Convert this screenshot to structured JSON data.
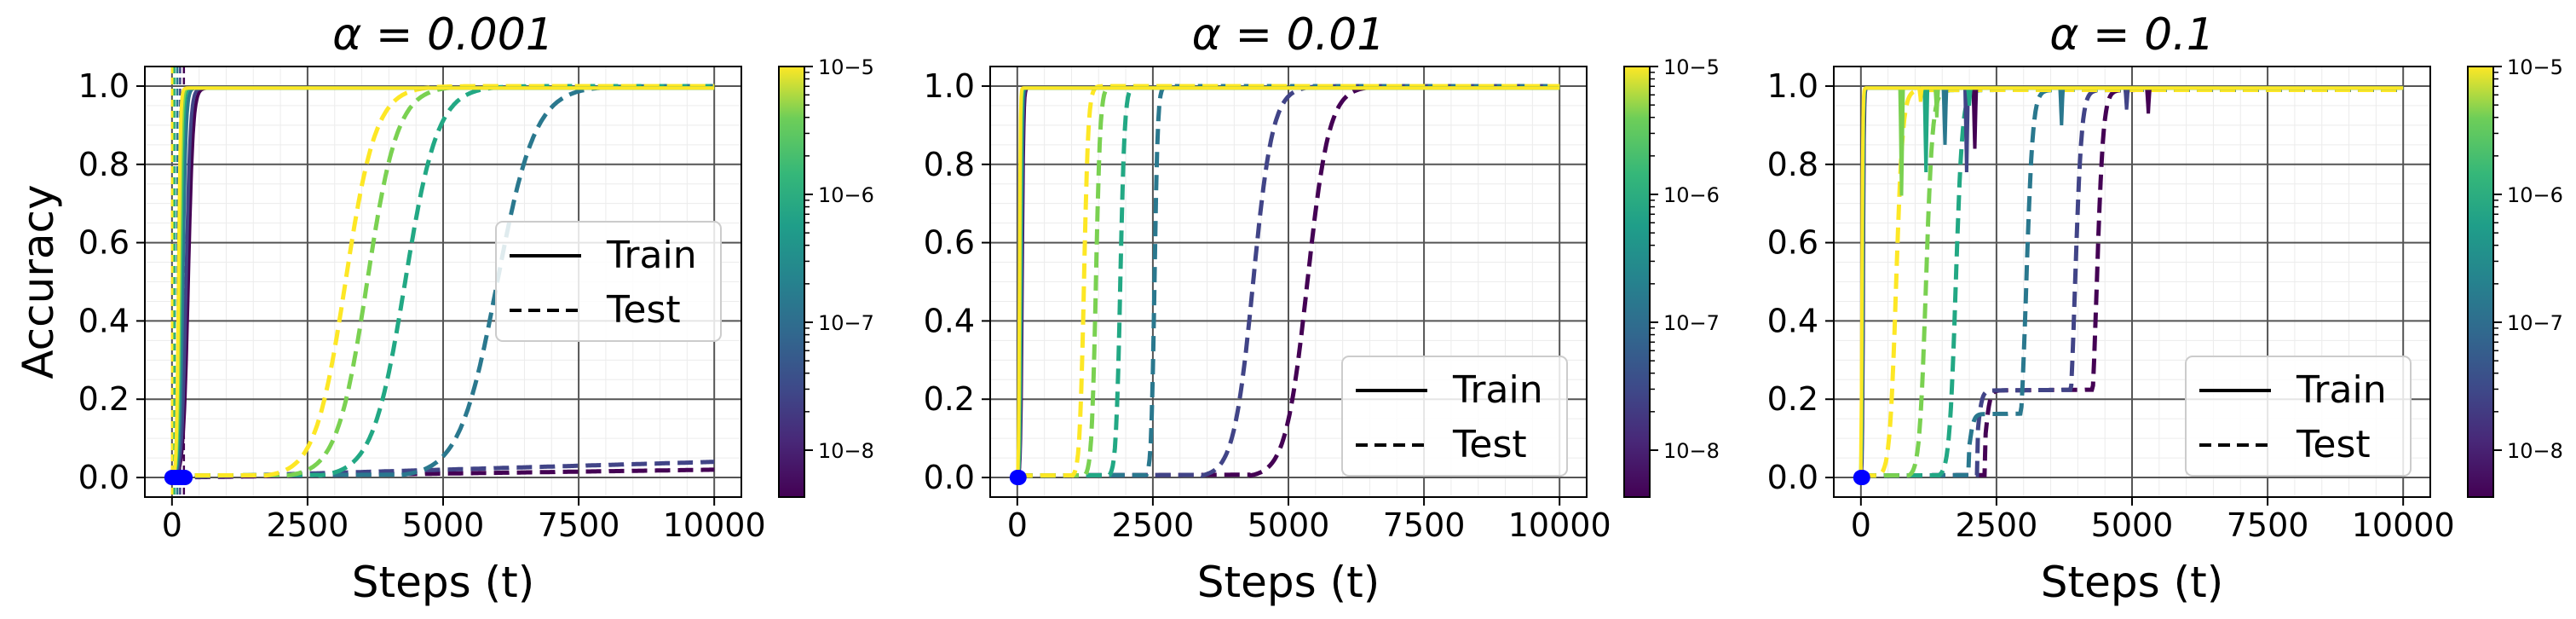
{
  "chart_data": [
    {
      "type": "line",
      "title": "α = 0.001",
      "xlabel": "Steps (t)",
      "ylabel": "Accuracy",
      "xlim": [
        -500,
        10500
      ],
      "ylim": [
        -0.05,
        1.05
      ],
      "xticks": [
        "0",
        "2500",
        "5000",
        "7500",
        "10000"
      ],
      "yticks": [
        "0.0",
        "0.2",
        "0.4",
        "0.6",
        "0.8",
        "1.0"
      ],
      "grid": true,
      "legend": {
        "position": "center-right",
        "entries": [
          "Train",
          "Test"
        ]
      },
      "colorbar": {
        "ticks": [
          "10−5",
          "10−6",
          "10−7",
          "10−8"
        ],
        "scale": "log"
      },
      "markers_at_origin": true,
      "series": [
        {
          "color": "#fde725",
          "train_jump": 120,
          "test_mid": 3200,
          "test_width": 280,
          "test_end": 1.0,
          "vline": 0
        },
        {
          "color": "#7ad151",
          "train_jump": 140,
          "test_mid": 3600,
          "test_width": 280,
          "test_end": 1.0,
          "vline": 20
        },
        {
          "color": "#22a884",
          "train_jump": 160,
          "test_mid": 4300,
          "test_width": 300,
          "test_end": 1.0,
          "vline": 50
        },
        {
          "color": "#2a788e",
          "train_jump": 200,
          "test_mid": 6000,
          "test_width": 350,
          "test_end": 1.0,
          "vline": 100
        },
        {
          "color": "#414487",
          "train_jump": 260,
          "test_linear_end": 0.04,
          "vline": 150
        },
        {
          "color": "#440154",
          "train_jump": 300,
          "test_linear_end": 0.02,
          "vline": 220
        }
      ]
    },
    {
      "type": "line",
      "title": "α = 0.01",
      "xlabel": "Steps (t)",
      "xlim": [
        -500,
        10500
      ],
      "ylim": [
        -0.05,
        1.05
      ],
      "xticks": [
        "0",
        "2500",
        "5000",
        "7500",
        "10000"
      ],
      "yticks": [
        "0.0",
        "0.2",
        "0.4",
        "0.6",
        "0.8",
        "1.0"
      ],
      "grid": true,
      "legend": {
        "position": "lower-right",
        "entries": [
          "Train",
          "Test"
        ]
      },
      "colorbar": {
        "ticks": [
          "10−5",
          "10−6",
          "10−7",
          "10−8"
        ],
        "scale": "log"
      },
      "markers_at_origin": true,
      "series": [
        {
          "color": "#fde725",
          "train_jump": 40,
          "test_mid": 1230,
          "test_width": 40,
          "test_end": 1.0
        },
        {
          "color": "#7ad151",
          "train_jump": 50,
          "test_mid": 1450,
          "test_width": 40,
          "test_end": 1.0
        },
        {
          "color": "#22a884",
          "train_jump": 60,
          "test_mid": 1900,
          "test_width": 40,
          "test_end": 1.0
        },
        {
          "color": "#2a788e",
          "train_jump": 70,
          "test_mid": 2530,
          "test_width": 30,
          "test_end": 1.0
        },
        {
          "color": "#414487",
          "train_jump": 80,
          "test_mid": 4350,
          "test_width": 180,
          "test_end": 1.0
        },
        {
          "color": "#440154",
          "train_jump": 90,
          "test_mid": 5350,
          "test_width": 200,
          "test_end": 1.0
        }
      ]
    },
    {
      "type": "line",
      "title": "α = 0.1",
      "xlabel": "Steps (t)",
      "xlim": [
        -500,
        10500
      ],
      "ylim": [
        -0.05,
        1.05
      ],
      "xticks": [
        "0",
        "2500",
        "5000",
        "7500",
        "10000"
      ],
      "yticks": [
        "0.0",
        "0.2",
        "0.4",
        "0.6",
        "0.8",
        "1.0"
      ],
      "grid": true,
      "legend": {
        "position": "lower-right",
        "entries": [
          "Train",
          "Test"
        ]
      },
      "colorbar": {
        "ticks": [
          "10−5",
          "10−6",
          "10−7",
          "10−8"
        ],
        "scale": "log"
      },
      "markers_at_origin": true,
      "series": [
        {
          "color": "#fde725",
          "train_jump": 20,
          "test_mid": 650,
          "test_width": 60,
          "test_end": 0.99,
          "dips": [
            [
              1100,
              0.96
            ]
          ]
        },
        {
          "color": "#7ad151",
          "train_jump": 25,
          "test_mid": 1200,
          "test_width": 60,
          "test_end": 0.99,
          "dips": [
            [
              750,
              0.72
            ],
            [
              1400,
              0.92
            ]
          ]
        },
        {
          "color": "#22a884",
          "train_jump": 30,
          "test_mid": 1750,
          "test_width": 60,
          "test_end": 0.99,
          "dips": [
            [
              1200,
              0.78
            ],
            [
              2000,
              0.95
            ]
          ]
        },
        {
          "color": "#2a788e",
          "train_jump": 35,
          "plateau": [
            2000,
            2750,
            0.16
          ],
          "test_mid": 3050,
          "test_width": 60,
          "test_end": 0.99,
          "dips": [
            [
              1550,
              0.85
            ],
            [
              3700,
              0.9
            ]
          ]
        },
        {
          "color": "#414487",
          "train_jump": 40,
          "plateau": [
            2150,
            3800,
            0.22
          ],
          "test_mid": 3950,
          "test_width": 60,
          "test_end": 0.99,
          "dips": [
            [
              1950,
              0.78
            ],
            [
              4900,
              0.94
            ]
          ]
        },
        {
          "color": "#440154",
          "train_jump": 45,
          "plateau": [
            2300,
            4250,
            0.22
          ],
          "test_mid": 4350,
          "test_width": 60,
          "test_end": 0.99,
          "dips": [
            [
              2100,
              0.84
            ],
            [
              5300,
              0.93
            ]
          ]
        }
      ]
    }
  ]
}
